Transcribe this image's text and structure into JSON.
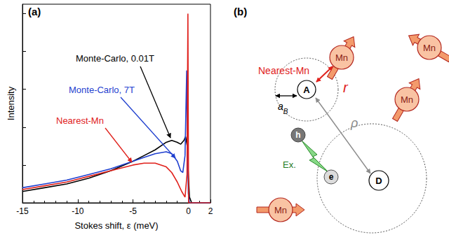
{
  "chart_data": {
    "type": "line",
    "title": "(a)",
    "xlabel": "Stokes shift, ε (meV)",
    "ylabel": "Intensity",
    "xlim": [
      -15,
      2
    ],
    "xticks": [
      -15,
      -10,
      -5,
      0
    ],
    "ylim": [
      0,
      1.05
    ],
    "yticks": [
      0,
      0.2,
      0.4,
      0.6,
      0.8,
      1
    ],
    "tick_labels": "x",
    "grid": false,
    "series": [
      {
        "name": "Monte-Carlo, 0.01T",
        "color": "#000000",
        "x": [
          -15,
          -13,
          -11,
          -9,
          -7,
          -5,
          -4,
          -3,
          -2,
          -1.5,
          -1,
          -0.7,
          -0.4,
          -0.25,
          -0.1,
          0,
          0.1,
          0.3,
          2
        ],
        "values": [
          0.06,
          0.08,
          0.1,
          0.13,
          0.17,
          0.22,
          0.25,
          0.28,
          0.32,
          0.33,
          0.32,
          0.31,
          0.33,
          0.35,
          0.3,
          0.15,
          0.03,
          0,
          0
        ]
      },
      {
        "name": "Monte-Carlo, 7T",
        "color": "#1f3fcf",
        "x": [
          -15,
          -13,
          -11,
          -9,
          -7,
          -5,
          -4,
          -3,
          -2,
          -1.5,
          -1,
          -0.7,
          -0.5,
          -0.3,
          -0.15,
          -0.08,
          0,
          0.1,
          2
        ],
        "values": [
          0.08,
          0.1,
          0.12,
          0.15,
          0.18,
          0.22,
          0.24,
          0.26,
          0.27,
          0.26,
          0.22,
          0.17,
          0.16,
          0.25,
          0.7,
          0.3,
          0.05,
          0,
          0
        ]
      },
      {
        "name": "Nearest-Mn",
        "color": "#e0201b",
        "x": [
          -15,
          -13,
          -11,
          -9,
          -7,
          -5,
          -4,
          -3,
          -2,
          -1.5,
          -1,
          -0.6,
          -0.3,
          -0.12,
          -0.04,
          0.02,
          2
        ],
        "values": [
          0.07,
          0.09,
          0.11,
          0.14,
          0.17,
          0.2,
          0.21,
          0.21,
          0.19,
          0.16,
          0.11,
          0.06,
          0.03,
          0.15,
          1.0,
          0,
          0
        ]
      }
    ]
  },
  "diagram": {
    "label": "(b)",
    "nearest_label": "Nearest-Mn",
    "spins": [
      "Mn",
      "Mn",
      "Mn",
      "Mn"
    ],
    "acceptor": "A",
    "donor": "D",
    "hole": "h",
    "electron": "e",
    "exciton": "Ex.",
    "distance_r": "r",
    "distance_rho": "ρ",
    "bohr_radius": {
      "text": "a",
      "subscript": "B"
    }
  }
}
